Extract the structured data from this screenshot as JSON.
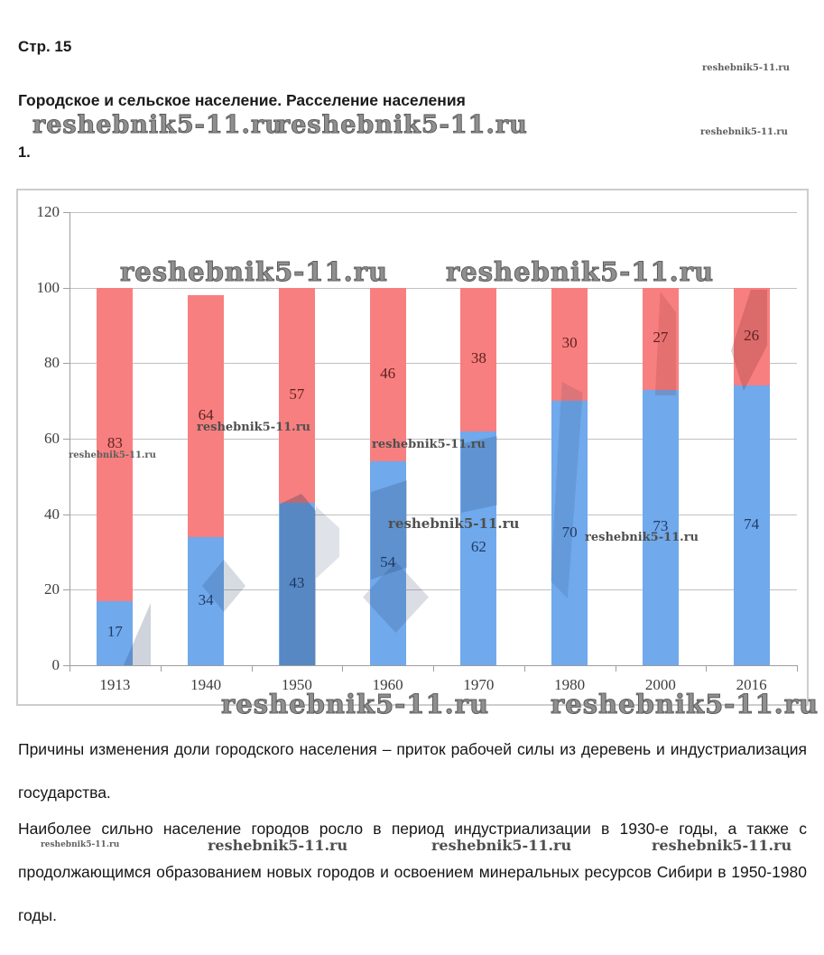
{
  "watermark": {
    "text": "reshebnik5-11.ru"
  },
  "page": {
    "page_label": "Стр. 15",
    "heading": "Городское и сельское население. Расселение населения",
    "item_number": "1.",
    "paragraphs": [
      "Причины изменения доли городского населения – приток рабочей силы из деревень и индустриализация государства.",
      "Наиболее сильно население городов росло в период индустриализации в 1930-е годы, а также с продолжающимся образованием новых городов и освоением минеральных ресурсов Сибири в 1950-1980 годы."
    ]
  },
  "chart_data": {
    "type": "bar",
    "stacked": true,
    "title": "",
    "categories": [
      "1913",
      "1940",
      "1950",
      "1960",
      "1970",
      "1980",
      "2000",
      "2016"
    ],
    "series": [
      {
        "id": "urban-blue-lower",
        "color": "#70a9ec",
        "label_color": "#1e3a66",
        "values": [
          17,
          34,
          43,
          54,
          62,
          70,
          73,
          74
        ]
      },
      {
        "id": "rural-red-upper",
        "color": "#f87f7f",
        "label_color": "#5e2121",
        "values": [
          83,
          64,
          57,
          46,
          38,
          30,
          27,
          26
        ]
      }
    ],
    "ylim": [
      0,
      120
    ],
    "yticks": [
      0,
      20,
      40,
      60,
      80,
      100,
      120
    ],
    "grid": true,
    "legend": "none",
    "axis_color": "#9e9e9e",
    "grid_color": "#c0c0c0",
    "tick_label_color": "#3d3d3d"
  }
}
